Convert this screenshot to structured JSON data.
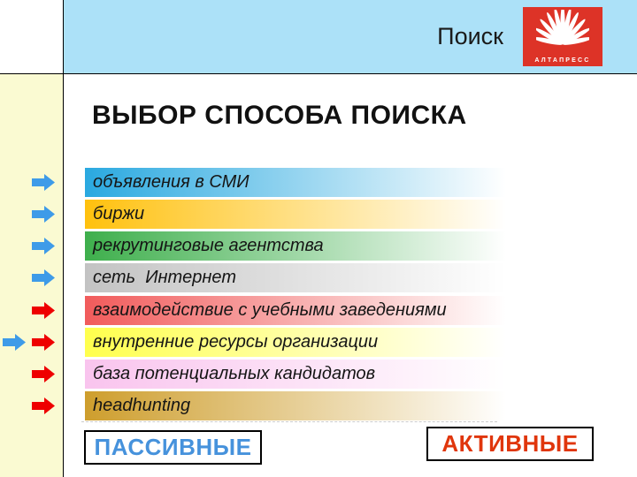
{
  "header": {
    "slide_label": "Поиск",
    "logo_text": "АЛТАПРЕСС"
  },
  "title": "ВЫБОР СПОСОБА ПОИСКА",
  "items": [
    {
      "label": "объявления в СМИ",
      "color": "#2AA9E0",
      "arrow": "blue"
    },
    {
      "label": "биржи",
      "color": "#FFC10E",
      "arrow": "blue"
    },
    {
      "label": "рекрутинговые агентства",
      "color": "#3EAF4C",
      "arrow": "blue"
    },
    {
      "label": "сеть  Интернет",
      "color": "#C3C3C3",
      "arrow": "blue"
    },
    {
      "label": "взаимодействие с учебными заведениями",
      "color": "#F15B5B",
      "arrow": "red"
    },
    {
      "label": "внутренние ресурсы организации",
      "color": "#FFFF4D",
      "arrow": "red",
      "extra_arrow": "blue"
    },
    {
      "label": "база потенциальных кандидатов",
      "color": "#F9C4EE",
      "arrow": "red"
    },
    {
      "label": "headhunting",
      "color": "#CE9E2D",
      "arrow": "red"
    }
  ],
  "footer": {
    "passive_label": "ПАССИВНЫЕ",
    "active_label": "АКТИВНЫЕ"
  },
  "colors": {
    "header_band": "#ACE1F8",
    "side_band": "#FAFAD2",
    "logo_red": "#DD3327",
    "arrow_blue": "#3E9BE8",
    "arrow_red": "#EE0000",
    "passive_text": "#4692DC",
    "active_text": "#E0360C"
  }
}
